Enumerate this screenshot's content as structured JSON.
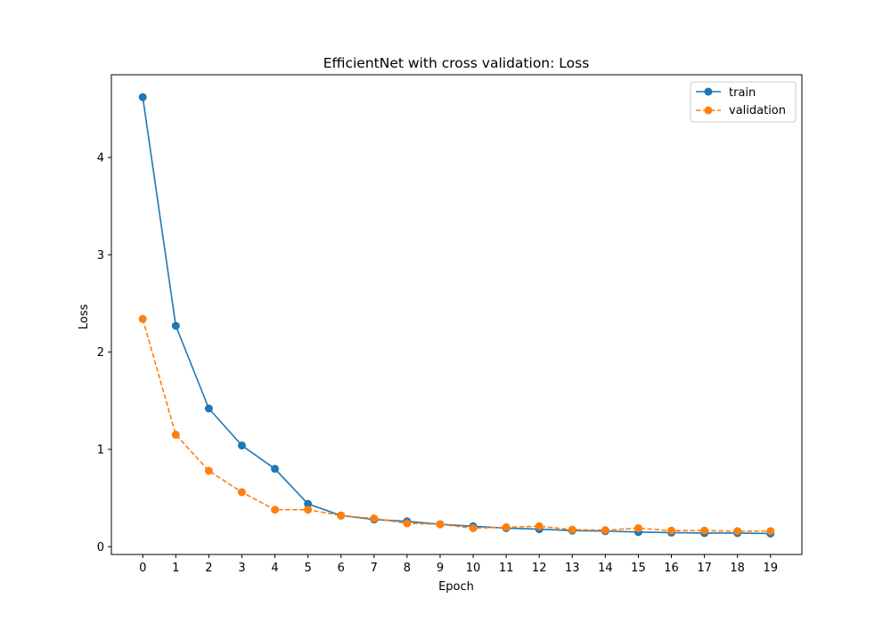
{
  "chart_data": {
    "type": "line",
    "title": "EfficientNet with cross validation: Loss",
    "xlabel": "Epoch",
    "ylabel": "Loss",
    "x": [
      0,
      1,
      2,
      3,
      4,
      5,
      6,
      7,
      8,
      9,
      10,
      11,
      12,
      13,
      14,
      15,
      16,
      17,
      18,
      19
    ],
    "xlim": [
      -0.95,
      19.95
    ],
    "ylim": [
      -0.08,
      4.85
    ],
    "yticks": [
      0,
      1,
      2,
      3,
      4
    ],
    "grid": false,
    "legend_position": "top-right",
    "series": [
      {
        "name": "train",
        "color": "#1f77b4",
        "linestyle": "solid",
        "marker": "circle",
        "values": [
          4.62,
          2.27,
          1.42,
          1.04,
          0.8,
          0.44,
          0.32,
          0.28,
          0.26,
          0.23,
          0.21,
          0.19,
          0.18,
          0.165,
          0.16,
          0.15,
          0.145,
          0.14,
          0.14,
          0.135
        ]
      },
      {
        "name": "validation",
        "color": "#ff7f0e",
        "linestyle": "dashed",
        "marker": "circle",
        "values": [
          2.34,
          1.15,
          0.78,
          0.56,
          0.38,
          0.38,
          0.32,
          0.29,
          0.24,
          0.23,
          0.19,
          0.2,
          0.21,
          0.175,
          0.17,
          0.19,
          0.165,
          0.165,
          0.16,
          0.16
        ]
      }
    ]
  }
}
